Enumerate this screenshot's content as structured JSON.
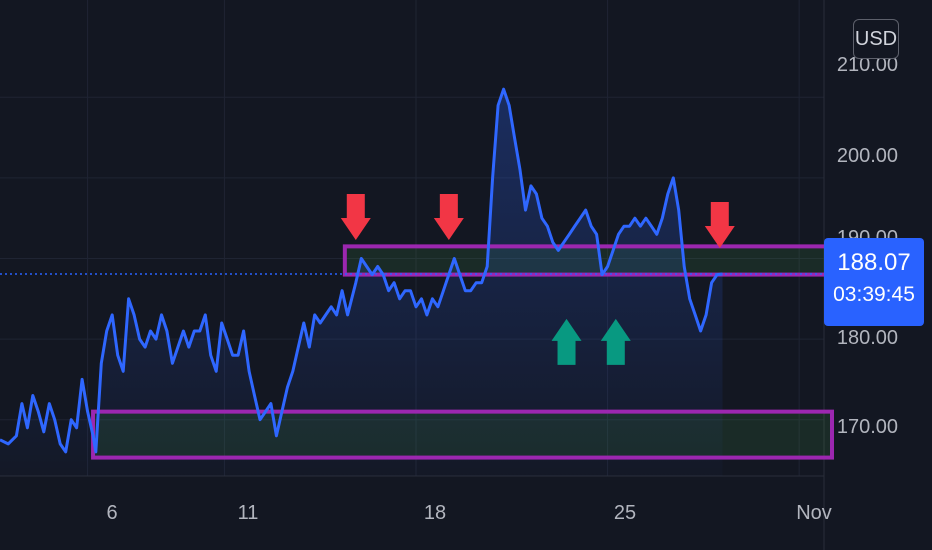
{
  "header": {
    "currency": "USD"
  },
  "price_tag": {
    "price": "188.07",
    "countdown": "03:39:45"
  },
  "colors": {
    "line": "#2f67ff",
    "zone_border": "#9c27b0",
    "arrow_down": "#f23645",
    "arrow_up": "#089981",
    "last_price": "#2962ff"
  },
  "chart_data": {
    "type": "line",
    "title": "",
    "xlabel": "",
    "ylabel": "",
    "x_ticks": [
      {
        "label": "6",
        "pos": 6
      },
      {
        "label": "11",
        "pos": 11
      },
      {
        "label": "18",
        "pos": 18
      },
      {
        "label": "25",
        "pos": 25
      },
      {
        "label": "Nov",
        "pos": 32
      }
    ],
    "y_ticks": [
      "210.00",
      "200.00",
      "190.00",
      "180.00",
      "170.00"
    ],
    "ylim": [
      165,
      214
    ],
    "xlim": [
      2.8,
      33.2
    ],
    "current_price": 188.07,
    "grid": true,
    "series": [
      {
        "values": [
          [
            2.8,
            167.5
          ],
          [
            3.1,
            167
          ],
          [
            3.4,
            168
          ],
          [
            3.6,
            172
          ],
          [
            3.8,
            169
          ],
          [
            4.0,
            173
          ],
          [
            4.2,
            171
          ],
          [
            4.4,
            168.5
          ],
          [
            4.6,
            172
          ],
          [
            4.8,
            170
          ],
          [
            5.0,
            167
          ],
          [
            5.2,
            166
          ],
          [
            5.4,
            170
          ],
          [
            5.6,
            169
          ],
          [
            5.8,
            175
          ],
          [
            6.0,
            171
          ],
          [
            6.2,
            168
          ],
          [
            6.3,
            166
          ],
          [
            6.5,
            177
          ],
          [
            6.7,
            181
          ],
          [
            6.9,
            183
          ],
          [
            7.1,
            178
          ],
          [
            7.3,
            176
          ],
          [
            7.5,
            185
          ],
          [
            7.7,
            183
          ],
          [
            7.9,
            180
          ],
          [
            8.1,
            179
          ],
          [
            8.3,
            181
          ],
          [
            8.5,
            180
          ],
          [
            8.7,
            183
          ],
          [
            8.9,
            181
          ],
          [
            9.1,
            177
          ],
          [
            9.3,
            179
          ],
          [
            9.5,
            181
          ],
          [
            9.7,
            179
          ],
          [
            9.9,
            181
          ],
          [
            10.1,
            181
          ],
          [
            10.3,
            183
          ],
          [
            10.5,
            178
          ],
          [
            10.7,
            176
          ],
          [
            10.9,
            182
          ],
          [
            11.1,
            180
          ],
          [
            11.3,
            178
          ],
          [
            11.5,
            178
          ],
          [
            11.7,
            181
          ],
          [
            11.9,
            176
          ],
          [
            12.1,
            173
          ],
          [
            12.3,
            170
          ],
          [
            12.5,
            171
          ],
          [
            12.7,
            172
          ],
          [
            12.9,
            168
          ],
          [
            13.1,
            171
          ],
          [
            13.3,
            174
          ],
          [
            13.5,
            176
          ],
          [
            13.7,
            179
          ],
          [
            13.9,
            182
          ],
          [
            14.1,
            179
          ],
          [
            14.3,
            183
          ],
          [
            14.5,
            182
          ],
          [
            14.7,
            183
          ],
          [
            14.9,
            184
          ],
          [
            15.1,
            183
          ],
          [
            15.3,
            186
          ],
          [
            15.5,
            183
          ],
          [
            15.8,
            187
          ],
          [
            16.0,
            190
          ],
          [
            16.2,
            189
          ],
          [
            16.4,
            188
          ],
          [
            16.6,
            189
          ],
          [
            16.8,
            188
          ],
          [
            17.0,
            186
          ],
          [
            17.2,
            187
          ],
          [
            17.4,
            185
          ],
          [
            17.6,
            186
          ],
          [
            17.8,
            186
          ],
          [
            18.0,
            184
          ],
          [
            18.2,
            185
          ],
          [
            18.4,
            183
          ],
          [
            18.6,
            185
          ],
          [
            18.8,
            184
          ],
          [
            19.0,
            186
          ],
          [
            19.2,
            188
          ],
          [
            19.4,
            190
          ],
          [
            19.6,
            188
          ],
          [
            19.8,
            186
          ],
          [
            20.0,
            186
          ],
          [
            20.2,
            187
          ],
          [
            20.4,
            187
          ],
          [
            20.6,
            189
          ],
          [
            20.8,
            200
          ],
          [
            21.0,
            209
          ],
          [
            21.2,
            211
          ],
          [
            21.4,
            209
          ],
          [
            21.6,
            205
          ],
          [
            21.8,
            201
          ],
          [
            22.0,
            196
          ],
          [
            22.2,
            199
          ],
          [
            22.4,
            198
          ],
          [
            22.6,
            195
          ],
          [
            22.8,
            194
          ],
          [
            23.0,
            192
          ],
          [
            23.2,
            191
          ],
          [
            23.4,
            192
          ],
          [
            23.6,
            193
          ],
          [
            23.8,
            194
          ],
          [
            24.0,
            195
          ],
          [
            24.2,
            196
          ],
          [
            24.4,
            194
          ],
          [
            24.6,
            193
          ],
          [
            24.8,
            188
          ],
          [
            25.0,
            189
          ],
          [
            25.2,
            191
          ],
          [
            25.4,
            193
          ],
          [
            25.6,
            194
          ],
          [
            25.8,
            194
          ],
          [
            26.0,
            195
          ],
          [
            26.2,
            194
          ],
          [
            26.4,
            195
          ],
          [
            26.6,
            194
          ],
          [
            26.8,
            193
          ],
          [
            27.0,
            195
          ],
          [
            27.2,
            198
          ],
          [
            27.4,
            200
          ],
          [
            27.6,
            196
          ],
          [
            27.8,
            189
          ],
          [
            28.0,
            185
          ],
          [
            28.2,
            183
          ],
          [
            28.4,
            181
          ],
          [
            28.6,
            183
          ],
          [
            28.8,
            187
          ],
          [
            29.0,
            188
          ],
          [
            29.2,
            188.07
          ]
        ]
      }
    ],
    "zones": [
      {
        "x_from": 15.4,
        "x_to": 33.0,
        "low": 188,
        "high": 191.5
      },
      {
        "x_from": 6.2,
        "x_to": 33.2,
        "low": 165.3,
        "high": 171
      }
    ],
    "arrows": [
      {
        "dir": "down",
        "x": 15.8,
        "y": 198
      },
      {
        "dir": "down",
        "x": 19.2,
        "y": 198
      },
      {
        "dir": "down",
        "x": 29.1,
        "y": 197
      },
      {
        "dir": "up",
        "x": 23.5,
        "y": 182.5
      },
      {
        "dir": "up",
        "x": 25.3,
        "y": 182.5
      }
    ]
  }
}
